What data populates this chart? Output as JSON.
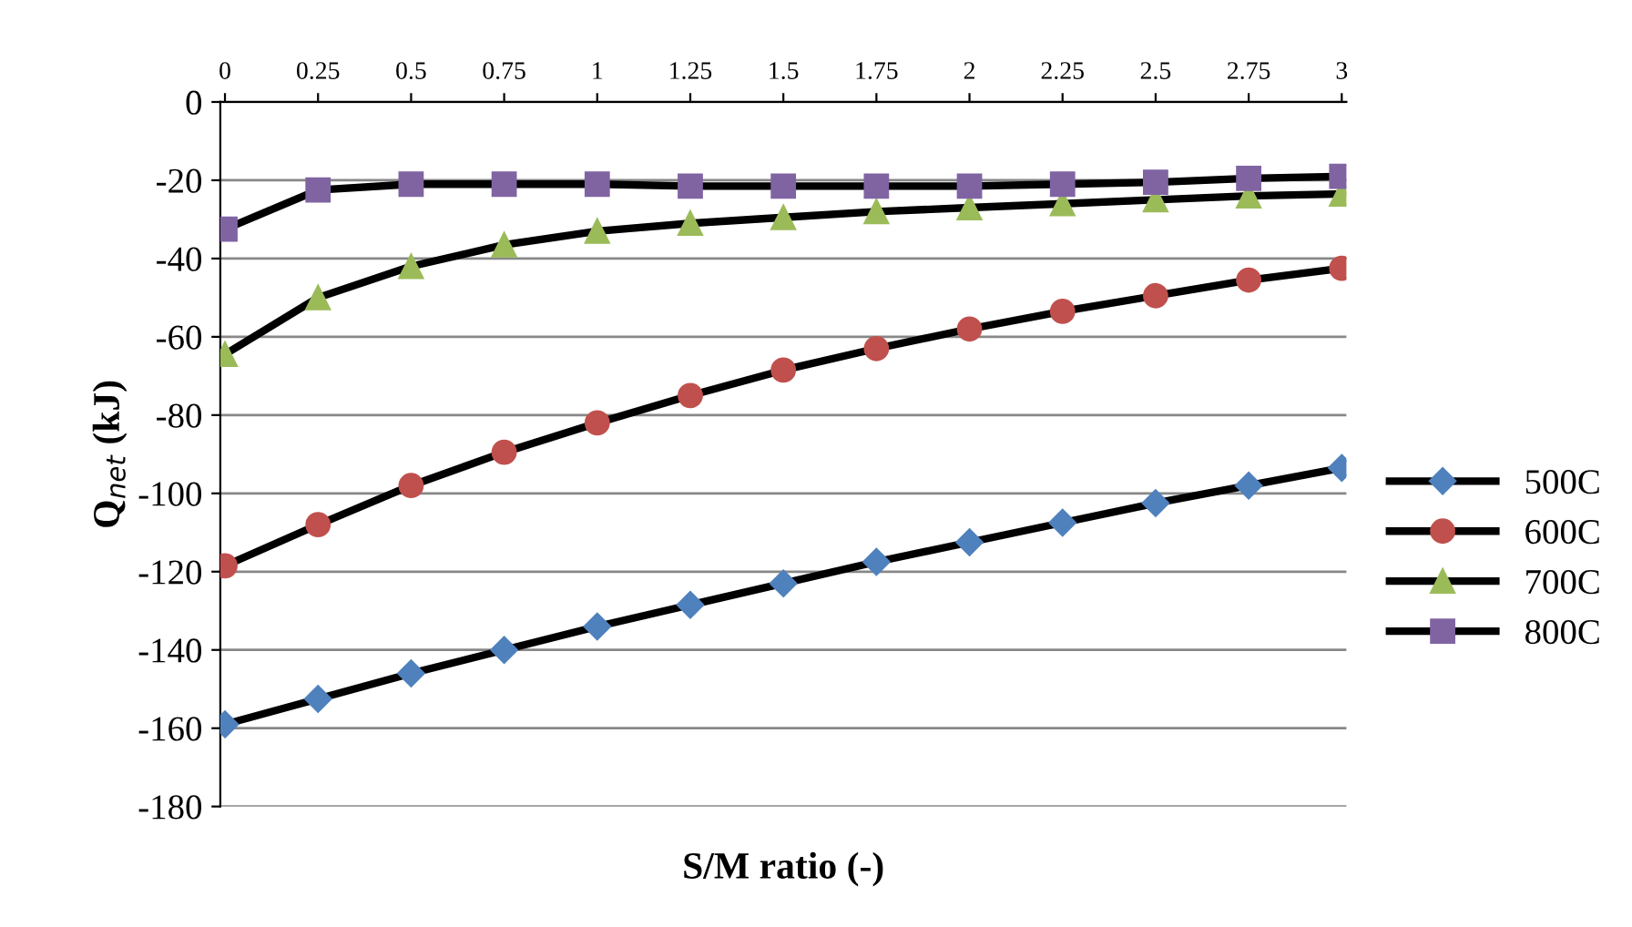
{
  "chart_data": {
    "type": "line",
    "xlabel": "S/M ratio (-)",
    "ylabel": "Q$_{net}$ (kJ)",
    "categories": [
      "0",
      "0.25",
      "0.5",
      "0.75",
      "1",
      "1.25",
      "1.5",
      "1.75",
      "2",
      "2.25",
      "2.5",
      "2.75",
      "3"
    ],
    "ylim": [
      -180,
      0
    ],
    "yticks": [
      -180,
      -160,
      -140,
      -120,
      -100,
      -80,
      -60,
      -40,
      -20,
      0
    ],
    "grid": "y",
    "legend": "right",
    "line_style": "solid",
    "series": [
      {
        "name": "500C",
        "color": "#4f81bd",
        "marker": "diamond",
        "values": [
          -159,
          -152.5,
          -146,
          -140,
          -134,
          -128.5,
          -123,
          -117.5,
          -112.5,
          -107.5,
          -102.5,
          -98,
          -93.5
        ]
      },
      {
        "name": "600C",
        "color": "#c0504d",
        "marker": "circle",
        "values": [
          -118.5,
          -108,
          -98,
          -89.5,
          -82,
          -75,
          -68.5,
          -63,
          -58,
          -53.5,
          -49.5,
          -45.5,
          -42.5
        ]
      },
      {
        "name": "700C",
        "color": "#9bbb59",
        "marker": "triangle",
        "values": [
          -64.5,
          -50,
          -42,
          -36.5,
          -33,
          -31,
          -29.5,
          -28,
          -27,
          -26,
          -25,
          -24,
          -23.5
        ]
      },
      {
        "name": "800C",
        "color": "#8064a2",
        "marker": "square",
        "values": [
          -32.5,
          -22.5,
          -21,
          -21,
          -21,
          -21.5,
          -21.5,
          -21.5,
          -21.5,
          -21,
          -20.5,
          -19.5,
          -19
        ]
      }
    ]
  }
}
